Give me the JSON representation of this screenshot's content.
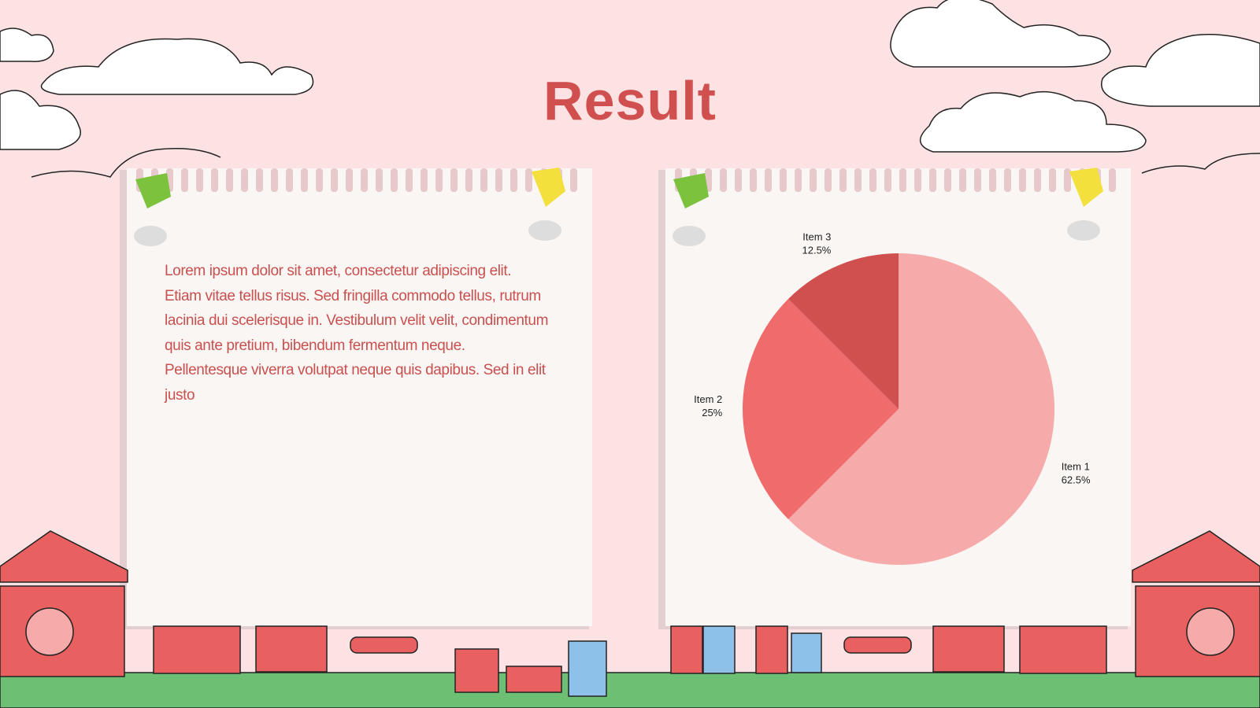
{
  "title": "Result",
  "body": "Lorem ipsum dolor sit amet, consectetur adipiscing elit. Etiam vitae tellus risus. Sed fringilla commodo tellus, rutrum lacinia dui scelerisque in. Vestibulum velit velit, condimentum quis ante pretium, bibendum fermentum neque. Pellentesque viverra volutpat neque quis dapibus. Sed in elit justo",
  "chart_data": {
    "type": "pie",
    "categories": [
      "Item 1",
      "Item 2",
      "Item 3"
    ],
    "values": [
      62.5,
      25,
      12.5
    ],
    "value_labels": [
      "62.5%",
      "25%",
      "12.5%"
    ],
    "colors": [
      "#f7aaaa",
      "#f06b6b",
      "#d05050"
    ]
  }
}
